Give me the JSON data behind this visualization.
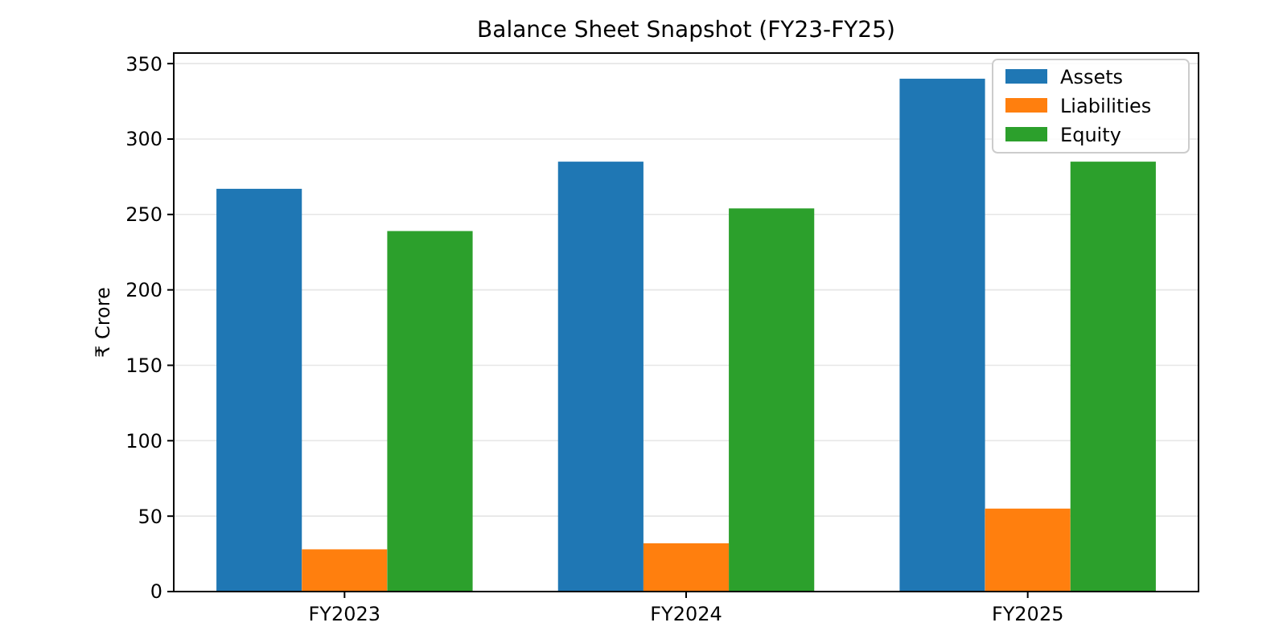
{
  "chart_data": {
    "type": "bar",
    "title": "Balance Sheet Snapshot (FY23-FY25)",
    "ylabel": "₹ Crore",
    "categories": [
      "FY2023",
      "FY2024",
      "FY2025"
    ],
    "series": [
      {
        "name": "Assets",
        "color": "#1f77b4",
        "values": [
          267,
          285,
          340
        ]
      },
      {
        "name": "Liabilities",
        "color": "#ff7f0e",
        "values": [
          28,
          32,
          55
        ]
      },
      {
        "name": "Equity",
        "color": "#2ca02c",
        "values": [
          239,
          254,
          285
        ]
      }
    ],
    "ylim": [
      0,
      357
    ],
    "yticks": [
      0,
      50,
      100,
      150,
      200,
      250,
      300,
      350
    ],
    "grid": "y",
    "legend": "top right"
  }
}
